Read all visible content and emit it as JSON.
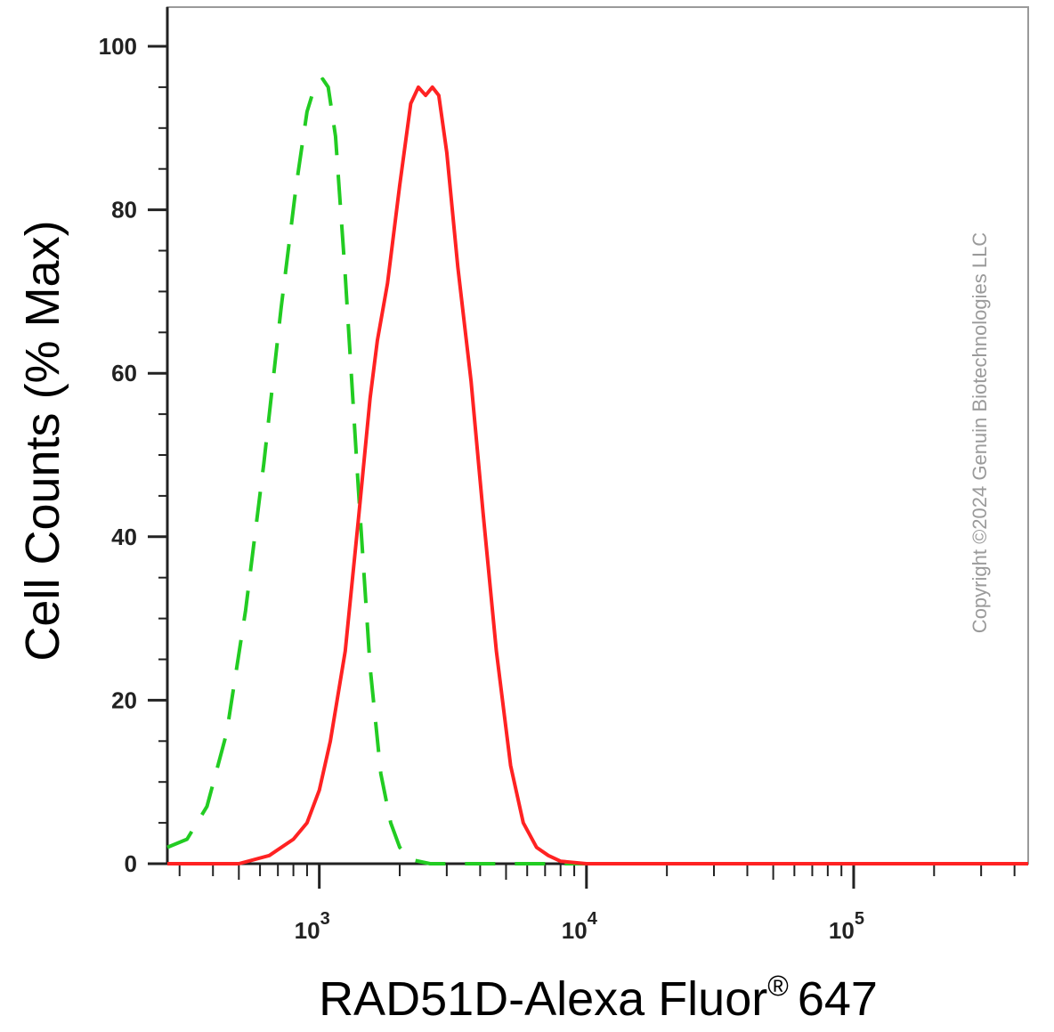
{
  "chart_data": {
    "type": "line",
    "title": "",
    "xlabel": "RAD51D-Alexa Fluor",
    "xlabel_sup": "®",
    "xlabel_suffix": "647",
    "ylabel": "Cell Counts (% Max)",
    "x_scale": "log",
    "xlim": [
      270,
      450000
    ],
    "ylim": [
      0,
      100
    ],
    "y_ticks": [
      0,
      20,
      40,
      60,
      80,
      100
    ],
    "x_ticks": [
      {
        "value": 1000,
        "base": "10",
        "exp": "3"
      },
      {
        "value": 10000,
        "base": "10",
        "exp": "4"
      },
      {
        "value": 100000,
        "base": "10",
        "exp": "5"
      }
    ],
    "grid": false,
    "series": [
      {
        "color": "#22cc22",
        "dash": "dashed",
        "x": [
          270,
          320,
          380,
          450,
          530,
          620,
          720,
          820,
          900,
          960,
          1030,
          1080,
          1150,
          1250,
          1400,
          1550,
          1700,
          1850,
          2000,
          2200,
          2600,
          3500,
          6000,
          20000,
          100000,
          450000
        ],
        "y": [
          2,
          3,
          7,
          16,
          31,
          49,
          68,
          83,
          92,
          95,
          96,
          95,
          89,
          72,
          46,
          24,
          11,
          5,
          2,
          0.5,
          0,
          0,
          0,
          0,
          0,
          0
        ]
      },
      {
        "color": "#ff2222",
        "dash": "solid",
        "x": [
          270,
          500,
          650,
          800,
          900,
          1000,
          1100,
          1250,
          1400,
          1550,
          1650,
          1800,
          2000,
          2200,
          2350,
          2500,
          2650,
          2800,
          3000,
          3300,
          3700,
          4100,
          4600,
          5200,
          5800,
          6500,
          7200,
          8000,
          10000,
          30000,
          100000,
          450000
        ],
        "y": [
          0,
          0,
          1,
          3,
          5,
          9,
          15,
          26,
          42,
          57,
          64,
          71,
          83,
          93,
          95,
          94,
          95,
          94,
          87,
          73,
          59,
          43,
          26,
          12,
          5,
          2,
          1,
          0.3,
          0,
          0,
          0,
          0
        ]
      }
    ]
  },
  "watermark": "Copyright ©2024 Genuin Biotechnologies LLC"
}
